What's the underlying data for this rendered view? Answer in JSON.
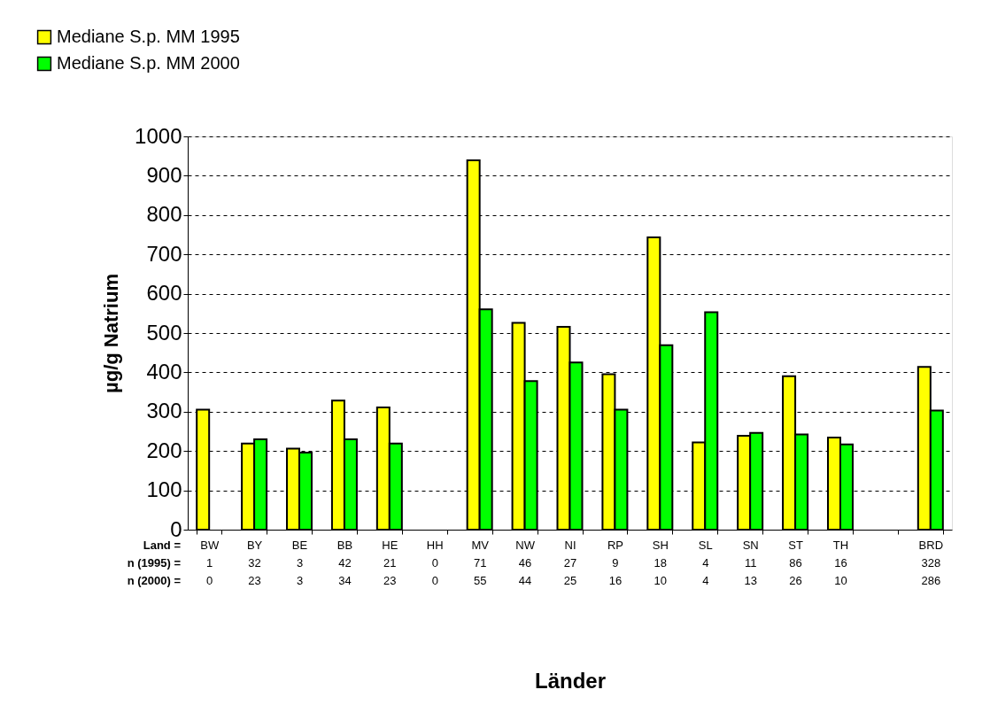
{
  "chart_data": {
    "type": "bar",
    "categories": [
      "BW\n1\n0",
      "BY\n32\n23",
      "BE\n3\n3",
      "BB\n42\n34",
      "HE\n21\n23",
      "HH\n0\n0",
      "MV\n71\n55",
      "NW\n46\n44",
      "NI\n27\n25",
      "RP\n9\n16",
      "SH\n18\n10",
      "SL\n4\n4",
      "SN\n11\n13",
      "ST\n86\n26",
      "TH\n16\n10",
      null,
      "BRD\n328\n286"
    ],
    "series": [
      {
        "name": "Mediane S.p. MM 1995",
        "color": "#ffff00",
        "values": [
          305,
          219,
          206,
          328,
          311,
          null,
          939,
          526,
          516,
          395,
          743,
          222,
          239,
          390,
          234,
          null,
          414
        ]
      },
      {
        "name": "Mediane S.p. MM 2000",
        "color": "#00ff00",
        "values": [
          null,
          230,
          196,
          230,
          219,
          null,
          560,
          378,
          425,
          305,
          469,
          553,
          246,
          242,
          217,
          null,
          303
        ]
      }
    ],
    "ylabel": "µg/g Natrium",
    "xlabel": "Länder",
    "annotations": [
      "Land =",
      "n (1995) =",
      "n (2000) ="
    ],
    "ylim": [
      0,
      1000
    ],
    "yticks": [
      0,
      100,
      200,
      300,
      400,
      500,
      600,
      700,
      800,
      900,
      1000
    ],
    "grid": "y",
    "legend": "top left"
  }
}
